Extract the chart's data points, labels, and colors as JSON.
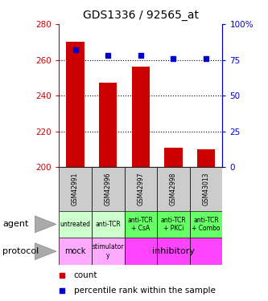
{
  "title": "GDS1336 / 92565_at",
  "samples": [
    "GSM42991",
    "GSM42996",
    "GSM42997",
    "GSM42998",
    "GSM43013"
  ],
  "counts": [
    270,
    247,
    256,
    211,
    210
  ],
  "percentile_ranks": [
    82,
    78,
    78,
    76,
    76
  ],
  "ylim_left": [
    200,
    280
  ],
  "ylim_right": [
    0,
    100
  ],
  "yticks_left": [
    200,
    220,
    240,
    260,
    280
  ],
  "yticks_right": [
    0,
    25,
    50,
    75,
    100
  ],
  "bar_color": "#cc0000",
  "marker_color": "#0000cc",
  "bar_bottom": 200,
  "agent_labels": [
    "untreated",
    "anti-TCR",
    "anti-TCR\n+ CsA",
    "anti-TCR\n+ PKCi",
    "anti-TCR\n+ Combo"
  ],
  "agent_bg_light": "#ccffcc",
  "agent_bg_dark": "#66ff66",
  "protocol_bg_light": "#ffaaff",
  "protocol_bg_dark": "#ff44ff",
  "sample_bg": "#cccccc",
  "legend_count_color": "#cc0000",
  "legend_pct_color": "#0000cc",
  "title_fontsize": 10,
  "axis_color_left": "#cc0000",
  "axis_color_right": "#0000cc",
  "grid_yticks": [
    220,
    240,
    260
  ]
}
